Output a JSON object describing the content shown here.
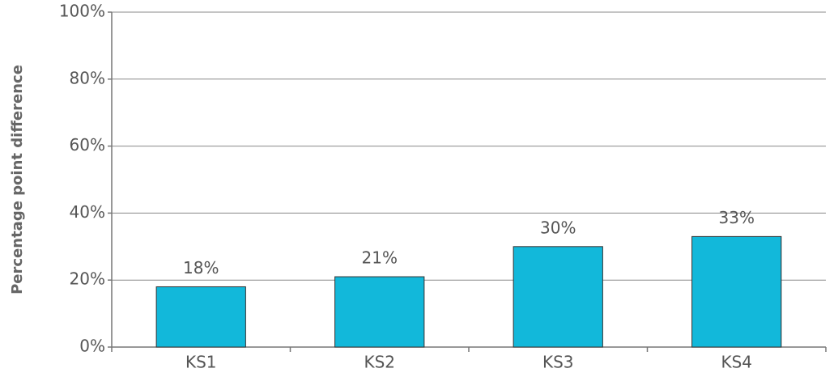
{
  "chart_data": {
    "type": "bar",
    "y_axis_label": "Percentage point difference",
    "categories": [
      "KS1",
      "KS2",
      "KS3",
      "KS4"
    ],
    "values": [
      18,
      21,
      30,
      33
    ],
    "value_labels": [
      "18%",
      "21%",
      "30%",
      "33%"
    ],
    "color": "#12b8da",
    "ylim": [
      0,
      100
    ],
    "yticks": [
      {
        "value": 0,
        "label": "0%"
      },
      {
        "value": 20,
        "label": "20%"
      },
      {
        "value": 40,
        "label": "40%"
      },
      {
        "value": 60,
        "label": "60%"
      },
      {
        "value": 80,
        "label": "80%"
      },
      {
        "value": 100,
        "label": "100%"
      }
    ],
    "grid": true
  }
}
